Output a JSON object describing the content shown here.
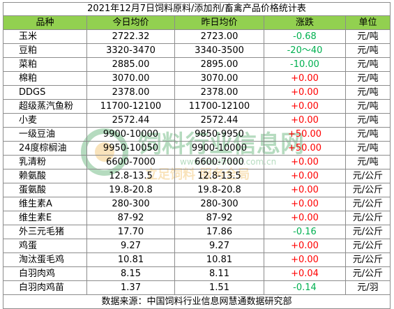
{
  "title": "2021年12月7日饲料原料/添加剂/畜禽产品价格统计表",
  "headers": [
    "品种",
    "今日均价",
    "昨日均价",
    "涨跌",
    "单位"
  ],
  "rows": [
    {
      "name": "玉米",
      "today": "2722.32",
      "yesterday": "2723.00",
      "change": "-0.68",
      "dir": "down",
      "unit": "元/吨"
    },
    {
      "name": "豆粕",
      "today": "3320-3470",
      "yesterday": "3340-3500",
      "change": "-20～40",
      "dir": "down",
      "unit": "元/吨"
    },
    {
      "name": "菜粕",
      "today": "2885.00",
      "yesterday": "2895.00",
      "change": "-10.00",
      "dir": "down",
      "unit": "元/吨"
    },
    {
      "name": "棉粕",
      "today": "3070.00",
      "yesterday": "3070.00",
      "change": "+0.00",
      "dir": "up",
      "unit": "元/吨"
    },
    {
      "name": "DDGS",
      "today": "2378.00",
      "yesterday": "2378.00",
      "change": "+0.00",
      "dir": "up",
      "unit": "元/吨"
    },
    {
      "name": "超级蒸汽鱼粉",
      "today": "11700-12100",
      "yesterday": "11700-12100",
      "change": "+0.00",
      "dir": "up",
      "unit": "元/吨"
    },
    {
      "name": "小麦",
      "today": "2572.44",
      "yesterday": "2572.44",
      "change": "+0.00",
      "dir": "up",
      "unit": "元/吨"
    },
    {
      "name": "一级豆油",
      "today": "9900-10000",
      "yesterday": "9850-9950",
      "change": "+50.00",
      "dir": "up",
      "unit": "元/吨"
    },
    {
      "name": "24度棕榈油",
      "today": "9950-10050",
      "yesterday": "9900-10000",
      "change": "+50.00",
      "dir": "up",
      "unit": "元/吨"
    },
    {
      "name": "乳清粉",
      "today": "6600-7000",
      "yesterday": "6600-7000",
      "change": "+0.00",
      "dir": "up",
      "unit": "元/吨"
    },
    {
      "name": "赖氨酸",
      "today": "12.8-13.5",
      "yesterday": "12.8-13.5",
      "change": "+0.00",
      "dir": "up",
      "unit": "元/公斤"
    },
    {
      "name": "蛋氨酸",
      "today": "19.8-20.8",
      "yesterday": "19.8-20.8",
      "change": "+0.00",
      "dir": "up",
      "unit": "元/公斤"
    },
    {
      "name": "维生素A",
      "today": "280-300",
      "yesterday": "280-300",
      "change": "+0.00",
      "dir": "up",
      "unit": "元/公斤"
    },
    {
      "name": "维生素E",
      "today": "87-92",
      "yesterday": "87-92",
      "change": "+0.00",
      "dir": "up",
      "unit": "元/公斤"
    },
    {
      "name": "外三元毛猪",
      "today": "17.70",
      "yesterday": "17.86",
      "change": "-0.16",
      "dir": "down",
      "unit": "元/公斤"
    },
    {
      "name": "鸡蛋",
      "today": "9.27",
      "yesterday": "9.27",
      "change": "+0.00",
      "dir": "up",
      "unit": "元/公斤"
    },
    {
      "name": "淘汰蛋毛鸡",
      "today": "10.81",
      "yesterday": "10.81",
      "change": "+0.00",
      "dir": "up",
      "unit": "元/公斤"
    },
    {
      "name": "白羽肉鸡",
      "today": "8.15",
      "yesterday": "8.11",
      "change": "+0.04",
      "dir": "up",
      "unit": "元/公斤"
    },
    {
      "name": "白羽肉鸡苗",
      "today": "1.37",
      "yesterday": "1.51",
      "change": "-0.14",
      "dir": "down",
      "unit": "元/羽"
    }
  ],
  "source": "数据来源：中国饲料行业信息网慧通数据研究部",
  "watermark": {
    "name": "饲料行业信息网",
    "url": "www.feedtrade.com.cn",
    "slogan": "立足饲料 服务全局"
  },
  "colors": {
    "header_bg": "#92d050",
    "up": "#ff0000",
    "down": "#00b050",
    "watermark": "#2e9b4a"
  }
}
